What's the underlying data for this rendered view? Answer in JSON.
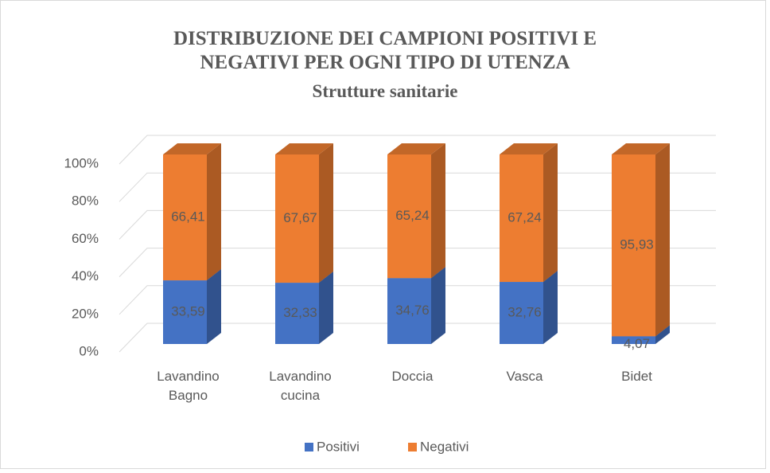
{
  "chart_data": {
    "type": "bar3d_stacked",
    "title": "DISTRIBUZIONE DEI CAMPIONI POSITIVI E NEGATIVI PER OGNI TIPO DI UTENZA",
    "subtitle": "Strutture sanitarie",
    "categories": [
      "Lavandino Bagno",
      "Lavandino cucina",
      "Doccia",
      "Vasca",
      "Bidet"
    ],
    "series": [
      {
        "name": "Positivi",
        "color": "#4472c4",
        "values": [
          33.59,
          32.33,
          34.76,
          32.76,
          4.07
        ],
        "value_labels": [
          "33,59",
          "32,33",
          "34,76",
          "32,76",
          "4,07"
        ]
      },
      {
        "name": "Negativi",
        "color": "#ed7d31",
        "values": [
          66.41,
          67.67,
          65.24,
          67.24,
          95.93
        ],
        "value_labels": [
          "66,41",
          "67,67",
          "65,24",
          "67,24",
          "95,93"
        ]
      }
    ],
    "ylim": [
      0,
      100
    ],
    "yticks": [
      {
        "value": 0,
        "label": "0%"
      },
      {
        "value": 20,
        "label": "20%"
      },
      {
        "value": 40,
        "label": "40%"
      },
      {
        "value": 60,
        "label": "60%"
      },
      {
        "value": 80,
        "label": "80%"
      },
      {
        "value": 100,
        "label": "100%"
      }
    ],
    "grid": true,
    "legend": "bottom"
  }
}
